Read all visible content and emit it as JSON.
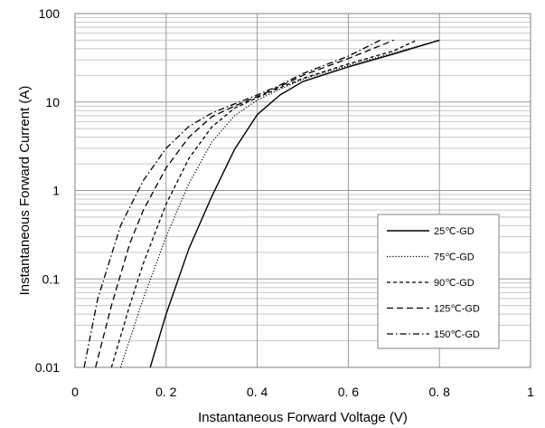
{
  "chart_data": {
    "type": "line",
    "title": "",
    "xlabel": "Instantaneous Forward Voltage (V)",
    "ylabel": "Instantaneous Forward Current (A)",
    "xlim": [
      0,
      1
    ],
    "ylim": [
      0.01,
      100
    ],
    "yscale": "log",
    "grid": true,
    "legend_position": "lower-right",
    "x_ticks": [
      0,
      0.2,
      0.4,
      0.6,
      0.8,
      1
    ],
    "x_tick_labels": [
      "0",
      "0. 2",
      "0. 4",
      "0. 6",
      "0. 8",
      "1"
    ],
    "y_ticks": [
      0.01,
      0.1,
      1,
      10,
      100
    ],
    "y_tick_labels": [
      "0.01",
      "0.1",
      "1",
      "10",
      "100"
    ],
    "series": [
      {
        "name": "25℃-GD",
        "dash": "solid",
        "points": [
          [
            0.165,
            0.01
          ],
          [
            0.2,
            0.04
          ],
          [
            0.25,
            0.22
          ],
          [
            0.3,
            0.85
          ],
          [
            0.35,
            2.9
          ],
          [
            0.4,
            7.2
          ],
          [
            0.45,
            12.0
          ],
          [
            0.5,
            17.0
          ],
          [
            0.6,
            25.0
          ],
          [
            0.7,
            35.0
          ],
          [
            0.8,
            50.0
          ]
        ]
      },
      {
        "name": "75℃-GD",
        "dash": "dotted",
        "points": [
          [
            0.1,
            0.01
          ],
          [
            0.15,
            0.06
          ],
          [
            0.2,
            0.3
          ],
          [
            0.25,
            1.2
          ],
          [
            0.3,
            3.5
          ],
          [
            0.35,
            7.0
          ],
          [
            0.4,
            10.5
          ],
          [
            0.45,
            14.0
          ],
          [
            0.5,
            18.0
          ],
          [
            0.6,
            26.0
          ],
          [
            0.7,
            36.0
          ],
          [
            0.8,
            50.0
          ]
        ]
      },
      {
        "name": "90℃-GD",
        "dash": "short-dash",
        "points": [
          [
            0.08,
            0.01
          ],
          [
            0.12,
            0.05
          ],
          [
            0.15,
            0.15
          ],
          [
            0.2,
            0.7
          ],
          [
            0.25,
            2.3
          ],
          [
            0.3,
            5.2
          ],
          [
            0.35,
            8.5
          ],
          [
            0.4,
            11.2
          ],
          [
            0.45,
            14.5
          ],
          [
            0.5,
            18.5
          ],
          [
            0.6,
            27.0
          ],
          [
            0.7,
            38.0
          ],
          [
            0.75,
            50.0
          ]
        ]
      },
      {
        "name": "125℃-GD",
        "dash": "long-dash",
        "points": [
          [
            0.045,
            0.01
          ],
          [
            0.08,
            0.05
          ],
          [
            0.12,
            0.25
          ],
          [
            0.15,
            0.6
          ],
          [
            0.2,
            1.8
          ],
          [
            0.25,
            4.0
          ],
          [
            0.3,
            6.8
          ],
          [
            0.35,
            9.0
          ],
          [
            0.4,
            11.5
          ],
          [
            0.45,
            15.0
          ],
          [
            0.5,
            20.0
          ],
          [
            0.6,
            31.0
          ],
          [
            0.7,
            50.0
          ]
        ]
      },
      {
        "name": "150℃-GD",
        "dash": "dash-dot",
        "points": [
          [
            0.02,
            0.01
          ],
          [
            0.05,
            0.06
          ],
          [
            0.1,
            0.4
          ],
          [
            0.15,
            1.3
          ],
          [
            0.2,
            3.0
          ],
          [
            0.25,
            5.3
          ],
          [
            0.3,
            7.5
          ],
          [
            0.35,
            9.5
          ],
          [
            0.4,
            12.0
          ],
          [
            0.45,
            15.5
          ],
          [
            0.5,
            21.0
          ],
          [
            0.6,
            33.0
          ],
          [
            0.67,
            50.0
          ]
        ]
      }
    ]
  }
}
